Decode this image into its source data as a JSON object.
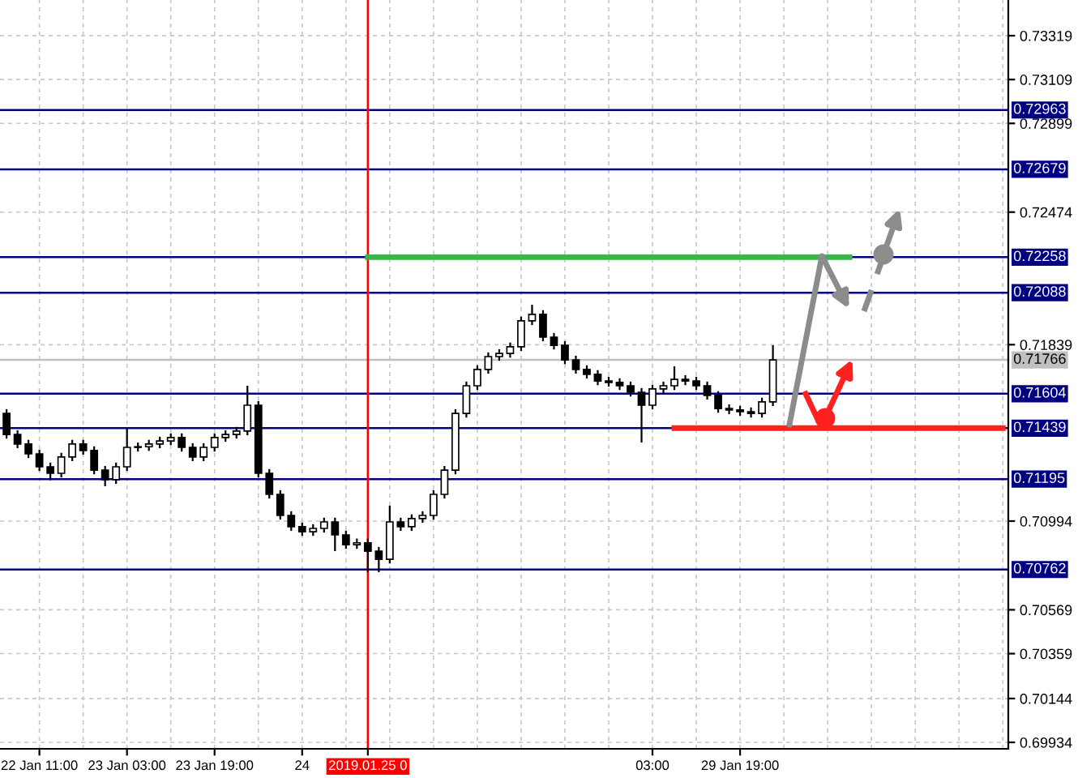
{
  "chart_data": {
    "type": "candlestick",
    "categories": [
      null,
      null,
      null,
      "22 Jan 11:00",
      null,
      null,
      null,
      null,
      null,
      null,
      null,
      "23 Jan 03:00",
      null,
      null,
      null,
      null,
      null,
      null,
      null,
      "23 Jan 19:00",
      null,
      null,
      null,
      null,
      null,
      null,
      null,
      "24",
      null,
      null,
      null,
      null,
      null,
      "2019.01.25 0",
      null,
      null,
      null,
      null,
      null,
      null,
      null,
      null,
      null,
      null,
      null,
      null,
      null,
      null,
      null,
      null,
      null,
      null,
      null,
      null,
      null,
      null,
      null,
      null,
      null,
      "03:00",
      null,
      null,
      null,
      null,
      null,
      null,
      null,
      "29 Jan 19:00",
      null,
      null,
      null,
      null,
      null,
      null,
      null,
      null,
      null,
      null,
      null,
      null,
      null,
      null,
      null,
      null,
      null,
      null,
      null,
      null,
      null,
      null,
      null,
      null
    ],
    "series": [
      {
        "color": "#000000",
        "ohlc": [
          [
            0.7151,
            0.7153,
            0.71389,
            0.71409
          ],
          [
            0.71409,
            0.71429,
            0.71343,
            0.71363
          ],
          [
            0.71363,
            0.71383,
            0.71296,
            0.71316
          ],
          [
            0.71316,
            0.71336,
            0.71234,
            0.71254
          ],
          [
            0.71254,
            0.71274,
            0.7119,
            0.71223
          ],
          [
            0.71223,
            0.71321,
            0.71203,
            0.71301
          ],
          [
            0.71301,
            0.71383,
            0.71281,
            0.71363
          ],
          [
            0.71363,
            0.71383,
            0.71312,
            0.71332
          ],
          [
            0.71332,
            0.71352,
            0.71218,
            0.71238
          ],
          [
            0.71238,
            0.71258,
            0.71161,
            0.71192
          ],
          [
            0.71192,
            0.71274,
            0.71172,
            0.71254
          ],
          [
            0.71254,
            0.7144,
            0.71234,
            0.71347
          ],
          [
            0.71347,
            0.7137,
            0.71327,
            0.7135
          ],
          [
            0.7135,
            0.71383,
            0.7133,
            0.71363
          ],
          [
            0.71363,
            0.71398,
            0.71343,
            0.71378
          ],
          [
            0.71378,
            0.71414,
            0.71358,
            0.71394
          ],
          [
            0.71394,
            0.71414,
            0.71327,
            0.71347
          ],
          [
            0.71347,
            0.71367,
            0.71281,
            0.71301
          ],
          [
            0.71301,
            0.71367,
            0.71281,
            0.71347
          ],
          [
            0.71347,
            0.71414,
            0.71327,
            0.71394
          ],
          [
            0.71394,
            0.71429,
            0.71374,
            0.71409
          ],
          [
            0.71409,
            0.71445,
            0.71389,
            0.71425
          ],
          [
            0.71425,
            0.71642,
            0.71405,
            0.71549
          ],
          [
            0.71549,
            0.71569,
            0.71203,
            0.71223
          ],
          [
            0.71223,
            0.71243,
            0.71102,
            0.71122
          ],
          [
            0.71122,
            0.71142,
            0.71001,
            0.71021
          ],
          [
            0.71021,
            0.71041,
            0.70947,
            0.70967
          ],
          [
            0.70967,
            0.70987,
            0.70923,
            0.70943
          ],
          [
            0.70943,
            0.70979,
            0.70923,
            0.70959
          ],
          [
            0.70959,
            0.7101,
            0.70939,
            0.7099
          ],
          [
            0.7099,
            0.7101,
            0.7085,
            0.70928
          ],
          [
            0.70928,
            0.70948,
            0.70861,
            0.70881
          ],
          [
            0.70881,
            0.7091,
            0.70861,
            0.7089
          ],
          [
            0.7089,
            0.7091,
            0.70749,
            0.7085
          ],
          [
            0.7085,
            0.7087,
            0.70749,
            0.70811
          ],
          [
            0.70811,
            0.71068,
            0.70791,
            0.7099
          ],
          [
            0.7099,
            0.7101,
            0.70947,
            0.70967
          ],
          [
            0.70967,
            0.71026,
            0.70947,
            0.71006
          ],
          [
            0.71006,
            0.71041,
            0.70986,
            0.71021
          ],
          [
            0.71021,
            0.71142,
            0.71001,
            0.71122
          ],
          [
            0.71122,
            0.71258,
            0.71102,
            0.71238
          ],
          [
            0.71238,
            0.7153,
            0.71218,
            0.7151
          ],
          [
            0.7151,
            0.71662,
            0.7149,
            0.71642
          ],
          [
            0.71642,
            0.7174,
            0.71622,
            0.7172
          ],
          [
            0.7172,
            0.71802,
            0.717,
            0.71782
          ],
          [
            0.71782,
            0.71817,
            0.71762,
            0.71797
          ],
          [
            0.71797,
            0.71849,
            0.71777,
            0.71829
          ],
          [
            0.71829,
            0.71973,
            0.71809,
            0.71953
          ],
          [
            0.71953,
            0.7203,
            0.71933,
            0.71984
          ],
          [
            0.71984,
            0.72004,
            0.71855,
            0.71875
          ],
          [
            0.71875,
            0.71895,
            0.71816,
            0.71836
          ],
          [
            0.71836,
            0.71856,
            0.71746,
            0.71766
          ],
          [
            0.71766,
            0.71786,
            0.717,
            0.7172
          ],
          [
            0.7172,
            0.7174,
            0.71677,
            0.71697
          ],
          [
            0.71697,
            0.71717,
            0.71645,
            0.71665
          ],
          [
            0.71665,
            0.71685,
            0.71638,
            0.71658
          ],
          [
            0.71658,
            0.71678,
            0.71622,
            0.71642
          ],
          [
            0.71642,
            0.71662,
            0.71591,
            0.71611
          ],
          [
            0.71611,
            0.71631,
            0.7137,
            0.71549
          ],
          [
            0.71549,
            0.71647,
            0.71529,
            0.71627
          ],
          [
            0.71627,
            0.71662,
            0.71607,
            0.71642
          ],
          [
            0.71642,
            0.71735,
            0.71622,
            0.71673
          ],
          [
            0.71673,
            0.71693,
            0.71645,
            0.71665
          ],
          [
            0.71665,
            0.71685,
            0.71622,
            0.71642
          ],
          [
            0.71642,
            0.71662,
            0.71576,
            0.71596
          ],
          [
            0.71596,
            0.71616,
            0.71513,
            0.71533
          ],
          [
            0.71533,
            0.71553,
            0.71506,
            0.71526
          ],
          [
            0.71526,
            0.71546,
            0.71498,
            0.71518
          ],
          [
            0.71518,
            0.71538,
            0.7149,
            0.7151
          ],
          [
            0.7151,
            0.71585,
            0.7149,
            0.71565
          ],
          [
            0.71565,
            0.71836,
            0.71545,
            0.71766
          ],
          null,
          null,
          null,
          null,
          null,
          null,
          null,
          null,
          null,
          null,
          null,
          null,
          null,
          null,
          null,
          null,
          null,
          null,
          null,
          null,
          null
        ]
      },
      {
        "type": "line",
        "color": "#3cb44b",
        "values": [
          null,
          null,
          null,
          null,
          null,
          null,
          null,
          null,
          null,
          null,
          null,
          null,
          null,
          null,
          null,
          null,
          null,
          null,
          null,
          null,
          null,
          null,
          null,
          null,
          null,
          null,
          null,
          null,
          null,
          null,
          null,
          null,
          null,
          0.72258,
          0.72258,
          0.72258,
          0.72258,
          0.72258,
          0.72258,
          0.72258,
          0.72258,
          0.72258,
          0.72258,
          0.72258,
          0.72258,
          0.72258,
          0.72258,
          0.72258,
          0.72258,
          0.72258,
          0.72258,
          0.72258,
          0.72258,
          0.72258,
          0.72258,
          0.72258,
          0.72258,
          0.72258,
          0.72258,
          0.72258,
          0.72258,
          0.72258,
          0.72258,
          0.72258,
          0.72258,
          0.72258,
          0.72258,
          0.72258,
          0.72258,
          0.72258,
          0.72258,
          0.72258,
          0.72258,
          0.72258,
          0.72258,
          0.72258,
          0.72258,
          0.72258,
          null,
          null,
          null,
          null,
          null,
          null,
          null,
          null,
          null,
          null,
          null,
          null,
          null,
          null
        ]
      },
      {
        "type": "line",
        "color": "#ff2020",
        "values": [
          null,
          null,
          null,
          null,
          null,
          null,
          null,
          null,
          null,
          null,
          null,
          null,
          null,
          null,
          null,
          null,
          null,
          null,
          null,
          null,
          null,
          null,
          null,
          null,
          null,
          null,
          null,
          null,
          null,
          null,
          null,
          null,
          null,
          null,
          null,
          null,
          null,
          null,
          null,
          null,
          null,
          null,
          null,
          null,
          null,
          null,
          null,
          null,
          null,
          null,
          null,
          null,
          null,
          null,
          null,
          null,
          null,
          null,
          null,
          null,
          null,
          0.71439,
          0.71439,
          0.71439,
          0.71439,
          0.71439,
          0.71439,
          0.71439,
          0.71439,
          0.71439,
          0.71439,
          0.71439,
          0.71439,
          0.71439,
          0.71439,
          0.71439,
          0.71439,
          0.71439,
          0.71439,
          0.71439,
          0.71439,
          0.71439,
          0.71439,
          0.71439,
          0.71439,
          0.71439,
          0.71439,
          0.71439,
          0.71439,
          0.71439,
          0.71439,
          0.71439
        ]
      }
    ],
    "ylim": [
      0.69903,
      0.7349
    ],
    "yticks": [
      0.73319,
      0.73109,
      0.72899,
      0.72474,
      0.71839,
      0.70994,
      0.70569,
      0.70359,
      0.70144,
      0.69934
    ],
    "ref_lines": [
      {
        "axis": "y",
        "value": 0.72963,
        "label": "0.72963",
        "color": "#000080"
      },
      {
        "axis": "y",
        "value": 0.72679,
        "label": "0.72679",
        "color": "#000080"
      },
      {
        "axis": "y",
        "value": 0.72258,
        "label": "0.72258",
        "color": "#000080"
      },
      {
        "axis": "y",
        "value": 0.72088,
        "label": "0.72088",
        "color": "#000080"
      },
      {
        "axis": "y",
        "value": 0.71766,
        "label": "0.71766",
        "color": "#c0c0c0"
      },
      {
        "axis": "y",
        "value": 0.71604,
        "label": "0.71604",
        "color": "#000080"
      },
      {
        "axis": "y",
        "value": 0.71439,
        "label": "0.71439",
        "color": "#000080"
      },
      {
        "axis": "y",
        "value": 0.71195,
        "label": "0.71195",
        "color": "#000080"
      },
      {
        "axis": "y",
        "value": 0.70762,
        "label": "0.70762",
        "color": "#000080"
      },
      {
        "axis": "x",
        "value": "2019.01.25 0",
        "color": "#ff0000"
      }
    ],
    "grid": true
  }
}
